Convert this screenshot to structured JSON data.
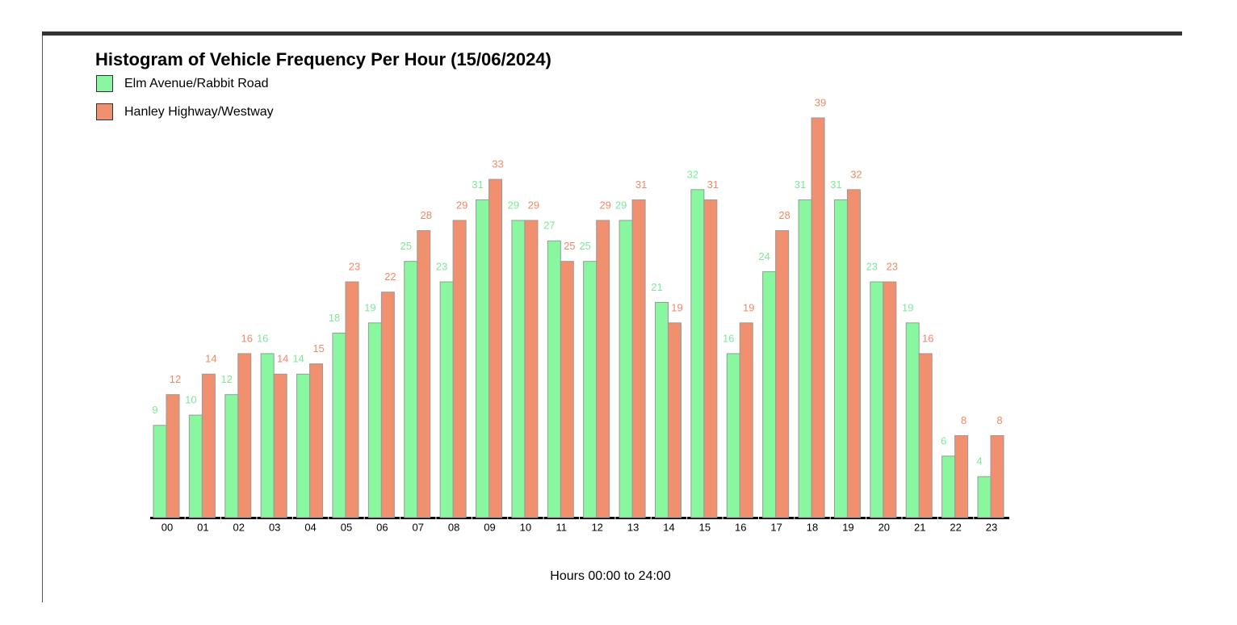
{
  "chart_data": {
    "type": "bar",
    "title": "Histogram of Vehicle Frequency Per Hour (15/06/2024)",
    "x_label": "Hours 00:00 to 24:00",
    "categories": [
      "00",
      "01",
      "02",
      "03",
      "04",
      "05",
      "06",
      "07",
      "08",
      "09",
      "10",
      "11",
      "12",
      "13",
      "14",
      "15",
      "16",
      "17",
      "18",
      "19",
      "20",
      "21",
      "22",
      "23"
    ],
    "series": [
      {
        "name": "Elm Avenue/Rabbit Road",
        "color": "#88f7a0",
        "label_color": "#7ee89a",
        "values": [
          9,
          10,
          12,
          16,
          14,
          18,
          19,
          25,
          23,
          31,
          29,
          27,
          25,
          29,
          21,
          32,
          16,
          24,
          31,
          31,
          23,
          19,
          6,
          4
        ]
      },
      {
        "name": "Hanley Highway/Westway",
        "color": "#f0906e",
        "label_color": "#f08a66",
        "values": [
          12,
          14,
          16,
          14,
          15,
          23,
          22,
          28,
          29,
          33,
          29,
          25,
          29,
          31,
          19,
          31,
          19,
          28,
          39,
          32,
          23,
          16,
          8,
          8
        ]
      }
    ],
    "legend": "top-left"
  }
}
